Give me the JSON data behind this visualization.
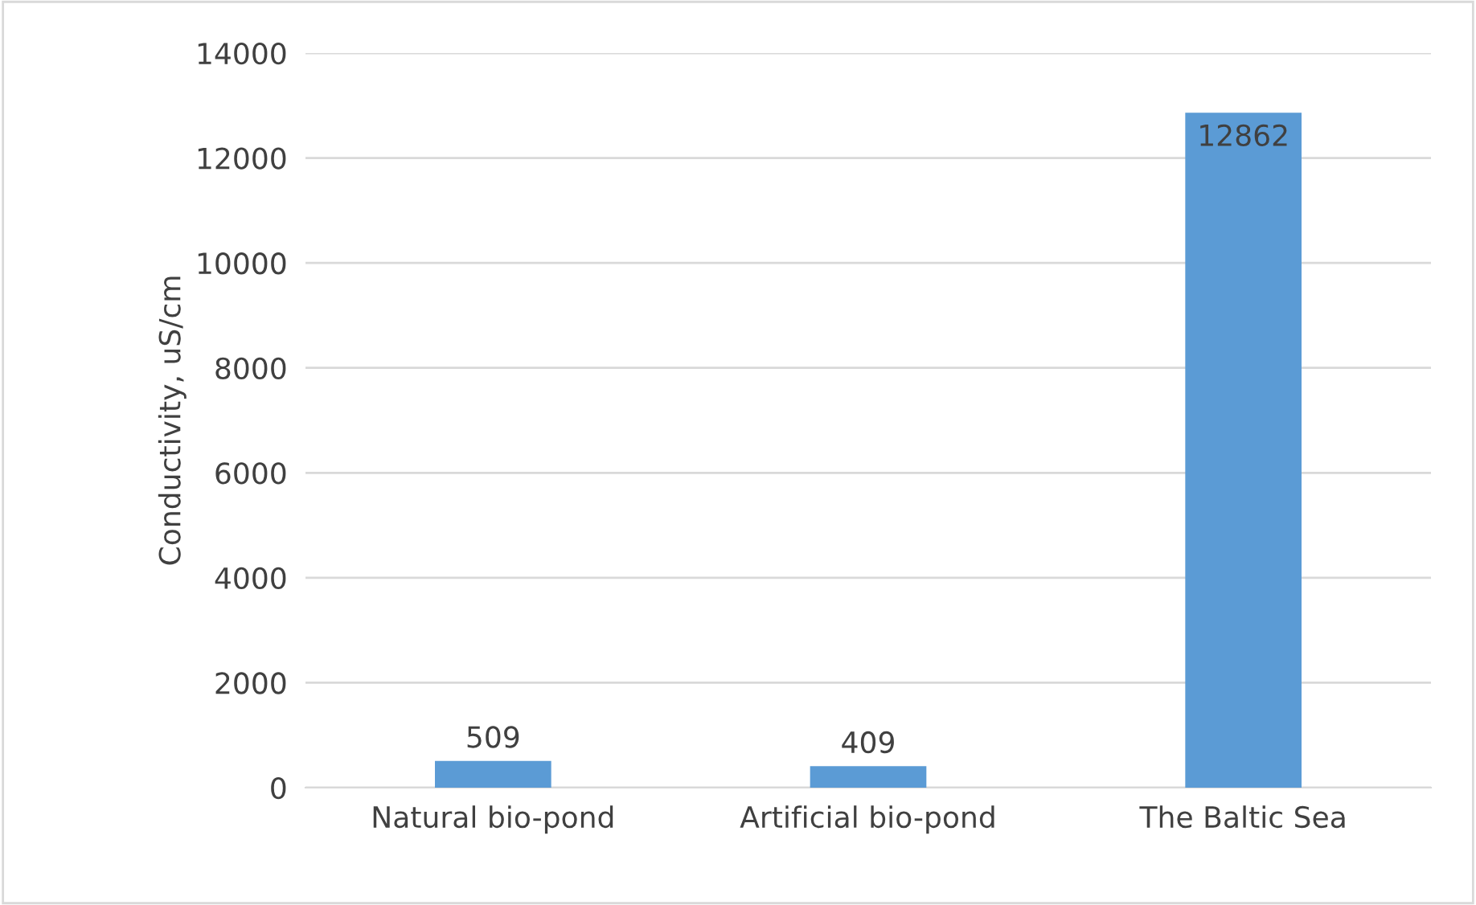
{
  "chart_data": {
    "type": "bar",
    "ylabel": "Conductivity, uS/cm",
    "categories": [
      "Natural bio-pond",
      "Artificial bio-pond",
      "The Baltic Sea"
    ],
    "values": [
      509,
      409,
      12862
    ],
    "color": "#5b9bd5",
    "ylim": [
      0,
      14000
    ],
    "yticks": [
      0,
      2000,
      4000,
      6000,
      8000,
      10000,
      12000,
      14000
    ],
    "grid": "y",
    "data_labels": true
  }
}
